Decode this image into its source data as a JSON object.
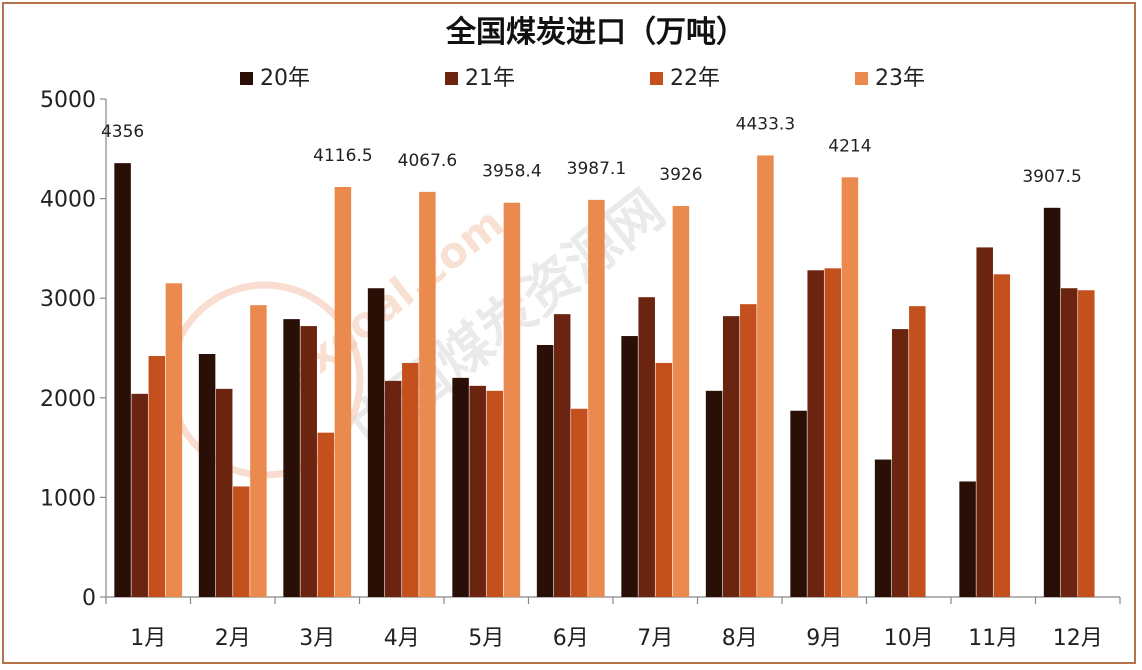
{
  "chart_data": {
    "type": "bar",
    "title": "全国煤炭进口（万吨）",
    "xlabel": "",
    "ylabel": "",
    "categories": [
      "1月",
      "2月",
      "3月",
      "4月",
      "5月",
      "6月",
      "7月",
      "8月",
      "9月",
      "10月",
      "11月",
      "12月"
    ],
    "ylim": [
      0,
      5000
    ],
    "yticks": [
      0,
      1000,
      2000,
      3000,
      4000,
      5000
    ],
    "grid": false,
    "legend_position": "top",
    "series": [
      {
        "name": "20年",
        "color": "#2a0f06",
        "values": [
          4356,
          2440,
          2790,
          3100,
          2200,
          2530,
          2620,
          2070,
          1870,
          1380,
          1160,
          3907.5
        ]
      },
      {
        "name": "21年",
        "color": "#6b2410",
        "values": [
          2040,
          2090,
          2720,
          2170,
          2120,
          2840,
          3010,
          2820,
          3280,
          2690,
          3510,
          3100
        ]
      },
      {
        "name": "22年",
        "color": "#c4501e",
        "values": [
          2420,
          1110,
          1650,
          2350,
          2070,
          1890,
          2350,
          2940,
          3300,
          2920,
          3240,
          3080
        ]
      },
      {
        "name": "23年",
        "color": "#eb8a4e",
        "values": [
          3150,
          2930,
          4116.5,
          4067.6,
          3958.4,
          3987.1,
          3926,
          4433.3,
          4214,
          null,
          null,
          null
        ]
      }
    ],
    "data_labels": [
      {
        "series": "20年",
        "category": "1月",
        "text": "4356"
      },
      {
        "series": "23年",
        "category": "3月",
        "text": "4116.5"
      },
      {
        "series": "23年",
        "category": "4月",
        "text": "4067.6"
      },
      {
        "series": "23年",
        "category": "5月",
        "text": "3958.4"
      },
      {
        "series": "23年",
        "category": "6月",
        "text": "3987.1"
      },
      {
        "series": "23年",
        "category": "7月",
        "text": "3926"
      },
      {
        "series": "23年",
        "category": "8月",
        "text": "4433.3"
      },
      {
        "series": "23年",
        "category": "9月",
        "text": "4214"
      },
      {
        "series": "20年",
        "category": "12月",
        "text": "3907.5"
      }
    ]
  },
  "watermark": {
    "text": "sxcoal.com",
    "text2": "中国煤炭资源网",
    "color": "#f3c7b0"
  }
}
